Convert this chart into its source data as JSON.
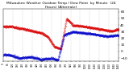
{
  "title": "",
  "bg_color": "#ffffff",
  "plot_bg_color": "#ffffff",
  "grid_color": "#888888",
  "temp_color": "#dd0000",
  "dew_color": "#0000cc",
  "ylim": [
    -15,
    65
  ],
  "xlim": [
    0,
    1440
  ],
  "num_points": 1440,
  "y_ticks": [
    -10,
    0,
    10,
    20,
    30,
    40,
    50,
    60
  ],
  "ytick_fontsize": 3.0,
  "xtick_fontsize": 2.0,
  "vgrid_positions": [
    120,
    240,
    360,
    480,
    600,
    720,
    840,
    960,
    1080,
    1200,
    1320
  ],
  "figsize": [
    1.6,
    0.87
  ],
  "dpi": 100,
  "top_title": "Milwaukee Weather Outdoor Temp / Dew Point  by Minute  (24 Hours) (Alternate)",
  "title_fontsize": 3.2
}
